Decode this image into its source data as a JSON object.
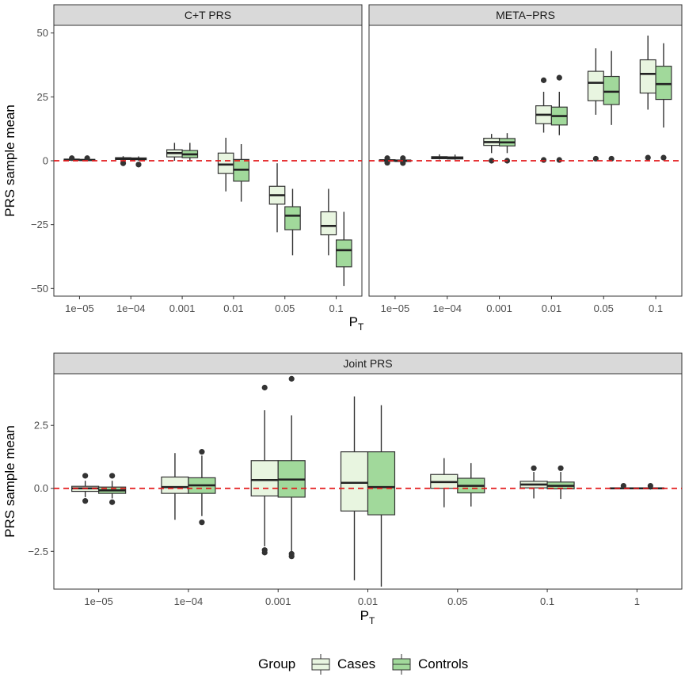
{
  "chart_data": [
    {
      "type": "boxplot",
      "title": "C+T PRS",
      "xlabel": "P",
      "xlabel_sub": "T",
      "ylabel": "PRS sample mean",
      "ylim": [
        -53,
        53
      ],
      "yticks": [
        -50,
        -25,
        0,
        25,
        50
      ],
      "yticklabels": [
        "−50",
        "−25",
        "0",
        "25",
        "50"
      ],
      "categories": [
        "1e−05",
        "1e−04",
        "0.001",
        "0.01",
        "0.05",
        "0.1"
      ],
      "reference_line": 0,
      "series": [
        {
          "name": "Cases",
          "color": "#e8f5e0",
          "boxes": [
            {
              "low": 0.0,
              "q1": 0.2,
              "median": 0.4,
              "q3": 0.6,
              "high": 0.8,
              "outliers": [
                1.0
              ]
            },
            {
              "low": 0.0,
              "q1": 0.5,
              "median": 0.8,
              "q3": 1.2,
              "high": 1.8,
              "outliers": [
                -1.0
              ]
            },
            {
              "low": 0.0,
              "q1": 1.5,
              "median": 3.0,
              "q3": 4.3,
              "high": 7.0,
              "outliers": []
            },
            {
              "low": -12.0,
              "q1": -5.0,
              "median": -1.5,
              "q3": 3.0,
              "high": 9.0,
              "outliers": []
            },
            {
              "low": -28.0,
              "q1": -17.0,
              "median": -13.5,
              "q3": -10.0,
              "high": -1.0,
              "outliers": []
            },
            {
              "low": -37.0,
              "q1": -29.0,
              "median": -25.5,
              "q3": -20.0,
              "high": -11.0,
              "outliers": []
            }
          ]
        },
        {
          "name": "Controls",
          "color": "#a1d99b",
          "boxes": [
            {
              "low": -0.2,
              "q1": 0.1,
              "median": 0.3,
              "q3": 0.5,
              "high": 0.7,
              "outliers": [
                1.0
              ]
            },
            {
              "low": 0.0,
              "q1": 0.4,
              "median": 0.7,
              "q3": 1.1,
              "high": 1.7,
              "outliers": [
                -1.5
              ]
            },
            {
              "low": 0.0,
              "q1": 1.2,
              "median": 2.5,
              "q3": 4.0,
              "high": 7.0,
              "outliers": []
            },
            {
              "low": -16.0,
              "q1": -8.0,
              "median": -3.5,
              "q3": 0.5,
              "high": 6.5,
              "outliers": []
            },
            {
              "low": -37.0,
              "q1": -27.0,
              "median": -21.5,
              "q3": -18.0,
              "high": -11.0,
              "outliers": []
            },
            {
              "low": -49.0,
              "q1": -41.5,
              "median": -35.0,
              "q3": -31.0,
              "high": -20.0,
              "outliers": []
            }
          ]
        }
      ]
    },
    {
      "type": "boxplot",
      "title": "META−PRS",
      "xlabel": "P",
      "xlabel_sub": "T",
      "ylabel": "",
      "ylim": [
        -53,
        53
      ],
      "yticks": [
        -50,
        -25,
        0,
        25,
        50
      ],
      "yticklabels": [
        "−50",
        "−25",
        "0",
        "25",
        "50"
      ],
      "categories": [
        "1e−05",
        "1e−04",
        "0.001",
        "0.01",
        "0.05",
        "0.1"
      ],
      "reference_line": 0,
      "series": [
        {
          "name": "Cases",
          "color": "#e8f5e0",
          "boxes": [
            {
              "low": -0.5,
              "q1": -0.2,
              "median": 0.1,
              "q3": 0.4,
              "high": 0.8,
              "outliers": [
                1.0,
                -0.8
              ]
            },
            {
              "low": 0.5,
              "q1": 0.8,
              "median": 1.2,
              "q3": 1.6,
              "high": 2.5,
              "outliers": []
            },
            {
              "low": 3.0,
              "q1": 6.0,
              "median": 7.3,
              "q3": 8.8,
              "high": 10.5,
              "outliers": [
                0.0
              ]
            },
            {
              "low": 11.0,
              "q1": 14.5,
              "median": 18.0,
              "q3": 21.5,
              "high": 27.0,
              "outliers": [
                31.5,
                0.3
              ]
            },
            {
              "low": 18.0,
              "q1": 23.5,
              "median": 30.5,
              "q3": 35.0,
              "high": 44.0,
              "outliers": [
                0.8
              ]
            },
            {
              "low": 20.0,
              "q1": 26.5,
              "median": 34.0,
              "q3": 39.5,
              "high": 49.0,
              "outliers": [
                1.2
              ]
            }
          ]
        },
        {
          "name": "Controls",
          "color": "#a1d99b",
          "boxes": [
            {
              "low": -0.6,
              "q1": -0.3,
              "median": 0.0,
              "q3": 0.3,
              "high": 0.7,
              "outliers": [
                1.0,
                -0.9
              ]
            },
            {
              "low": 0.4,
              "q1": 0.7,
              "median": 1.1,
              "q3": 1.5,
              "high": 2.4,
              "outliers": []
            },
            {
              "low": 3.0,
              "q1": 5.8,
              "median": 7.2,
              "q3": 8.7,
              "high": 10.8,
              "outliers": [
                0.0
              ]
            },
            {
              "low": 10.0,
              "q1": 14.0,
              "median": 17.5,
              "q3": 21.0,
              "high": 27.0,
              "outliers": [
                32.5,
                0.3
              ]
            },
            {
              "low": 14.0,
              "q1": 22.0,
              "median": 27.0,
              "q3": 33.0,
              "high": 43.0,
              "outliers": [
                0.8
              ]
            },
            {
              "low": 13.0,
              "q1": 24.0,
              "median": 30.0,
              "q3": 37.0,
              "high": 46.0,
              "outliers": [
                1.2
              ]
            }
          ]
        }
      ]
    },
    {
      "type": "boxplot",
      "title": "Joint PRS",
      "xlabel": "P",
      "xlabel_sub": "T",
      "ylabel": "PRS sample mean",
      "ylim": [
        -4.0,
        4.55
      ],
      "yticks": [
        -2.5,
        0.0,
        2.5
      ],
      "yticklabels": [
        "−2.5",
        "0.0",
        "2.5"
      ],
      "categories": [
        "1e−05",
        "1e−04",
        "0.001",
        "0.01",
        "0.05",
        "0.1",
        "1"
      ],
      "reference_line": 0,
      "series": [
        {
          "name": "Cases",
          "color": "#e8f5e0",
          "boxes": [
            {
              "low": -0.35,
              "q1": -0.12,
              "median": 0.0,
              "q3": 0.08,
              "high": 0.3,
              "outliers": [
                0.5,
                -0.5
              ]
            },
            {
              "low": -1.25,
              "q1": -0.2,
              "median": 0.05,
              "q3": 0.45,
              "high": 1.4,
              "outliers": []
            },
            {
              "low": -2.3,
              "q1": -0.3,
              "median": 0.33,
              "q3": 1.1,
              "high": 3.1,
              "outliers": [
                4.0,
                -2.45,
                -2.55
              ]
            },
            {
              "low": -3.65,
              "q1": -0.9,
              "median": 0.22,
              "q3": 1.45,
              "high": 3.65,
              "outliers": []
            },
            {
              "low": -0.75,
              "q1": 0.0,
              "median": 0.25,
              "q3": 0.55,
              "high": 1.2,
              "outliers": []
            },
            {
              "low": -0.4,
              "q1": 0.02,
              "median": 0.15,
              "q3": 0.28,
              "high": 0.65,
              "outliers": [
                0.8
              ]
            },
            {
              "low": -0.04,
              "q1": -0.02,
              "median": 0.0,
              "q3": 0.02,
              "high": 0.05,
              "outliers": [
                0.1
              ]
            }
          ]
        },
        {
          "name": "Controls",
          "color": "#a1d99b",
          "boxes": [
            {
              "low": -0.4,
              "q1": -0.2,
              "median": -0.08,
              "q3": 0.05,
              "high": 0.3,
              "outliers": [
                0.5,
                -0.55
              ]
            },
            {
              "low": -1.1,
              "q1": -0.2,
              "median": 0.12,
              "q3": 0.42,
              "high": 1.3,
              "outliers": [
                1.45,
                -1.35
              ]
            },
            {
              "low": -2.5,
              "q1": -0.35,
              "median": 0.35,
              "q3": 1.1,
              "high": 2.9,
              "outliers": [
                4.35,
                -2.6,
                -2.7
              ]
            },
            {
              "low": -3.9,
              "q1": -1.05,
              "median": 0.05,
              "q3": 1.45,
              "high": 3.3,
              "outliers": []
            },
            {
              "low": -0.72,
              "q1": -0.18,
              "median": 0.1,
              "q3": 0.4,
              "high": 1.0,
              "outliers": []
            },
            {
              "low": -0.42,
              "q1": -0.02,
              "median": 0.1,
              "q3": 0.25,
              "high": 0.65,
              "outliers": [
                0.8
              ]
            },
            {
              "low": -0.05,
              "q1": -0.02,
              "median": 0.0,
              "q3": 0.02,
              "high": 0.05,
              "outliers": [
                0.1
              ]
            }
          ]
        }
      ]
    }
  ],
  "legend": {
    "title": "Group",
    "items": [
      {
        "label": "Cases",
        "color": "#e8f5e0"
      },
      {
        "label": "Controls",
        "color": "#a1d99b"
      }
    ]
  }
}
